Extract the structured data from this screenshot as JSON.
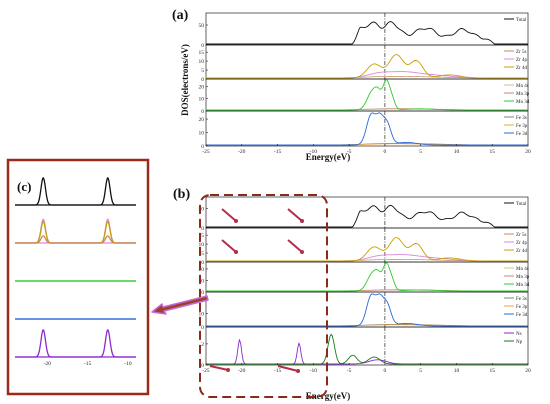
{
  "figure": {
    "panel_a_label": "(a)",
    "panel_b_label": "(b)",
    "panel_c_label": "(c)",
    "xlabel": "Energy(eV)",
    "ylabel": "DOS(electrons/eV)",
    "colors": {
      "frame": "#9a2a1a",
      "dash_box": "#8b2a1a",
      "arrow_fill": "#a0402a",
      "arrow_glow": "#c46ad6",
      "small_arrow": "#b0304a",
      "dash_dot": "#222222",
      "axis": "#222222"
    }
  },
  "chart_data": [
    {
      "panel": "(a)",
      "type": "line",
      "xlim": [
        -25,
        20
      ],
      "xticks": [
        -25,
        -20,
        -15,
        -10,
        -5,
        0,
        5,
        10,
        15,
        20
      ],
      "vertical_line_at": 0,
      "subplots": [
        {
          "yticks": [
            0,
            50
          ],
          "ylim": [
            0,
            80
          ],
          "series": [
            {
              "name": "Total",
              "color": "#111111",
              "role": "total"
            }
          ]
        },
        {
          "yticks": [
            0,
            5,
            10,
            15
          ],
          "ylim": [
            0,
            19
          ],
          "series": [
            {
              "name": "Zr 5s",
              "color": "#c98a5a",
              "role": "minor"
            },
            {
              "name": "Zr 4p",
              "color": "#d98ad8",
              "role": "mid"
            },
            {
              "name": "Zr 4d",
              "color": "#c8a000",
              "role": "zr4d"
            }
          ]
        },
        {
          "yticks": [
            0,
            10,
            20
          ],
          "ylim": [
            0,
            26
          ],
          "series": [
            {
              "name": "Mn 4s",
              "color": "#d0c080",
              "role": "minor"
            },
            {
              "name": "Mn 3p",
              "color": "#d08080",
              "role": "minor"
            },
            {
              "name": "Mn 3d",
              "color": "#2ecc2e",
              "role": "mn3d"
            }
          ]
        },
        {
          "yticks": [
            0,
            10,
            20
          ],
          "ylim": [
            0,
            26
          ],
          "series": [
            {
              "name": "Fe 3s",
              "color": "#808080",
              "role": "minor"
            },
            {
              "name": "Fe 3p",
              "color": "#f0a030",
              "role": "minor"
            },
            {
              "name": "Fe 3d",
              "color": "#2a6ad8",
              "role": "fe3d"
            }
          ]
        }
      ]
    },
    {
      "panel": "(b)",
      "type": "line",
      "xlim": [
        -25,
        20
      ],
      "xticks": [
        -25,
        -20,
        -15,
        -10,
        -5,
        0,
        5,
        10,
        15,
        20
      ],
      "vertical_line_at": 0,
      "subplots": [
        {
          "yticks": [
            0,
            50
          ],
          "ylim": [
            0,
            80
          ],
          "series": [
            {
              "name": "Total",
              "color": "#111111",
              "role": "total"
            }
          ]
        },
        {
          "yticks": [
            0,
            5,
            10,
            15
          ],
          "ylim": [
            0,
            19
          ],
          "series": [
            {
              "name": "Zr 5s",
              "color": "#c98a5a",
              "role": "minor"
            },
            {
              "name": "Zr 4p",
              "color": "#d98ad8",
              "role": "mid"
            },
            {
              "name": "Zr 4d",
              "color": "#c8a000",
              "role": "zr4d"
            }
          ]
        },
        {
          "yticks": [
            0,
            10,
            20
          ],
          "ylim": [
            0,
            26
          ],
          "series": [
            {
              "name": "Mn 4s",
              "color": "#d0c080",
              "role": "minor"
            },
            {
              "name": "Mn 3p",
              "color": "#d08080",
              "role": "minor"
            },
            {
              "name": "Mn 3d",
              "color": "#2ecc2e",
              "role": "mn3d"
            }
          ]
        },
        {
          "yticks": [
            0,
            10,
            20
          ],
          "ylim": [
            0,
            26
          ],
          "series": [
            {
              "name": "Fe 3s",
              "color": "#808080",
              "role": "minor"
            },
            {
              "name": "Fe 3p",
              "color": "#f0a030",
              "role": "minor"
            },
            {
              "name": "Fe 3d",
              "color": "#2a6ad8",
              "role": "fe3d"
            }
          ]
        },
        {
          "yticks": [
            0,
            2
          ],
          "ylim": [
            0,
            3.6
          ],
          "series": [
            {
              "name": "Ns",
              "color": "#8a2ad0",
              "role": "ns"
            },
            {
              "name": "Np",
              "color": "#1a7a1a",
              "role": "np"
            }
          ]
        }
      ]
    },
    {
      "panel": "(c)",
      "type": "line",
      "xlim": [
        -24,
        -9
      ],
      "xticks": [
        -20,
        -15,
        -10
      ],
      "subplots": [
        {
          "peaks": [
            {
              "x": -20.5,
              "h": 0.8,
              "w": 0.28
            },
            {
              "x": -12.5,
              "h": 0.8,
              "w": 0.28
            }
          ],
          "series": [
            {
              "name": "Total",
              "color": "#111111"
            }
          ]
        },
        {
          "peaks": [
            {
              "x": -20.5,
              "h": 0.7,
              "w": 0.28
            },
            {
              "x": -12.5,
              "h": 0.7,
              "w": 0.28
            }
          ],
          "series": [
            {
              "name": "Zr 4p",
              "color": "#d98ad8",
              "scale": 1.0
            },
            {
              "name": "Zr 4d",
              "color": "#c8a000",
              "scale": 0.9
            },
            {
              "name": "Zr 5s",
              "color": "#c98a5a",
              "scale": 0.3
            }
          ]
        },
        {
          "peaks": [],
          "series": [
            {
              "name": "Mn",
              "color": "#2ecc2e"
            }
          ]
        },
        {
          "peaks": [],
          "series": [
            {
              "name": "Fe",
              "color": "#2a6ad8"
            }
          ]
        },
        {
          "peaks": [
            {
              "x": -20.5,
              "h": 0.8,
              "w": 0.28
            },
            {
              "x": -12.5,
              "h": 0.8,
              "w": 0.28
            }
          ],
          "series": [
            {
              "name": "Ns",
              "color": "#8a2ad0"
            }
          ]
        }
      ]
    }
  ]
}
